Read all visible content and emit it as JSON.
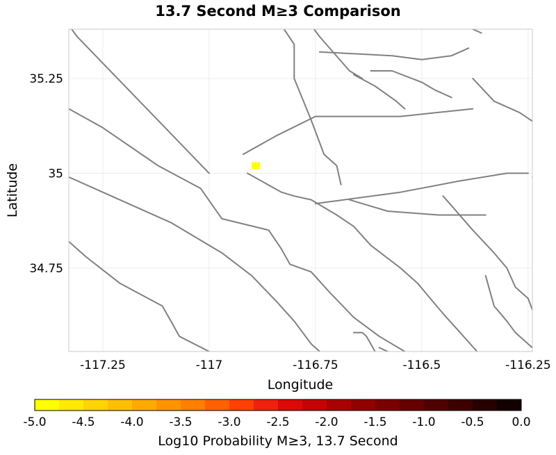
{
  "title": "13.7 Second M≥3 Comparison",
  "x_axis": {
    "label": "Longitude",
    "range": [
      -117.33,
      -116.24
    ],
    "ticks": [
      {
        "value": -117.25,
        "label": "-117.25"
      },
      {
        "value": -117.0,
        "label": "-117"
      },
      {
        "value": -116.75,
        "label": "-116.75"
      },
      {
        "value": -116.5,
        "label": "-116.5"
      },
      {
        "value": -116.25,
        "label": "-116.25"
      }
    ]
  },
  "y_axis": {
    "label": "Latitude",
    "range": [
      34.53,
      35.38
    ],
    "ticks": [
      {
        "value": 35.25,
        "label": "35.25"
      },
      {
        "value": 35.0,
        "label": "35"
      },
      {
        "value": 34.75,
        "label": "34.75"
      }
    ]
  },
  "grid": true,
  "colors": {
    "fault_line": "#808080",
    "frame": "#c8c8c8",
    "grid": "#ececec",
    "marker": "#ffff00"
  },
  "marker": {
    "lon": -116.89,
    "lat": 35.02,
    "color": "#ffff00"
  },
  "colorbar": {
    "label": "Log10 Probability M≥3, 13.7 Second",
    "ticks": [
      "-5.0",
      "-4.5",
      "-4.0",
      "-3.5",
      "-3.0",
      "-2.5",
      "-2.0",
      "-1.5",
      "-1.0",
      "-0.5",
      "0.0"
    ],
    "min": -5.0,
    "max": 0.0,
    "colors": [
      "#ffff00",
      "#ffea00",
      "#ffd400",
      "#ffbf00",
      "#ffaa00",
      "#ff9400",
      "#ff7f00",
      "#ff6000",
      "#ff4000",
      "#f02010",
      "#dd0808",
      "#c40404",
      "#aa0000",
      "#920000",
      "#7b0000",
      "#650000",
      "#500000",
      "#3c0000",
      "#280000",
      "#140000"
    ]
  },
  "faults": [
    [
      [
        -117.33,
        35.39
      ],
      [
        -117.31,
        35.36
      ],
      [
        -117.0,
        35.0
      ]
    ],
    [
      [
        -117.33,
        35.17
      ],
      [
        -117.25,
        35.12
      ],
      [
        -117.12,
        35.02
      ],
      [
        -117.02,
        34.96
      ],
      [
        -116.97,
        34.88
      ],
      [
        -116.86,
        34.85
      ],
      [
        -116.83,
        34.8
      ],
      [
        -116.81,
        34.76
      ],
      [
        -116.76,
        34.74
      ],
      [
        -116.72,
        34.69
      ],
      [
        -116.66,
        34.62
      ],
      [
        -116.6,
        34.57
      ],
      [
        -116.54,
        34.53
      ]
    ],
    [
      [
        -117.33,
        34.99
      ],
      [
        -117.23,
        34.94
      ],
      [
        -117.09,
        34.87
      ],
      [
        -116.97,
        34.79
      ],
      [
        -116.9,
        34.73
      ],
      [
        -116.84,
        34.66
      ],
      [
        -116.8,
        34.61
      ],
      [
        -116.76,
        34.55
      ],
      [
        -116.74,
        34.53
      ]
    ],
    [
      [
        -117.33,
        34.82
      ],
      [
        -117.29,
        34.78
      ],
      [
        -117.21,
        34.71
      ],
      [
        -117.11,
        34.65
      ],
      [
        -117.09,
        34.61
      ],
      [
        -117.07,
        34.57
      ],
      [
        -117.0,
        34.53
      ]
    ],
    [
      [
        -116.92,
        35.05
      ],
      [
        -116.84,
        35.1
      ],
      [
        -116.75,
        35.15
      ],
      [
        -116.55,
        35.15
      ],
      [
        -116.38,
        35.17
      ]
    ],
    [
      [
        -116.91,
        35.0
      ],
      [
        -116.83,
        34.95
      ],
      [
        -116.8,
        34.94
      ],
      [
        -116.76,
        34.93
      ],
      [
        -116.7,
        34.89
      ],
      [
        -116.66,
        34.86
      ],
      [
        -116.62,
        34.81
      ],
      [
        -116.55,
        34.75
      ],
      [
        -116.51,
        34.71
      ],
      [
        -116.48,
        34.67
      ],
      [
        -116.45,
        34.63
      ],
      [
        -116.41,
        34.58
      ],
      [
        -116.37,
        34.53
      ]
    ],
    [
      [
        -116.75,
        34.92
      ],
      [
        -116.55,
        34.95
      ],
      [
        -116.41,
        34.98
      ],
      [
        -116.3,
        35.0
      ],
      [
        -116.25,
        35.0
      ]
    ],
    [
      [
        -116.67,
        34.93
      ],
      [
        -116.58,
        34.9
      ],
      [
        -116.46,
        34.89
      ],
      [
        -116.39,
        34.89
      ],
      [
        -116.35,
        34.89
      ]
    ],
    [
      [
        -116.83,
        35.39
      ],
      [
        -116.8,
        35.34
      ],
      [
        -116.8,
        35.25
      ],
      [
        -116.76,
        35.14
      ],
      [
        -116.73,
        35.05
      ],
      [
        -116.7,
        35.02
      ],
      [
        -116.69,
        34.97
      ]
    ],
    [
      [
        -116.74,
        35.32
      ],
      [
        -116.57,
        35.31
      ],
      [
        -116.5,
        35.3
      ],
      [
        -116.43,
        35.31
      ],
      [
        -116.39,
        35.33
      ]
    ],
    [
      [
        -116.76,
        35.39
      ],
      [
        -116.74,
        35.36
      ],
      [
        -116.67,
        35.27
      ],
      [
        -116.64,
        35.25
      ]
    ],
    [
      [
        -116.62,
        35.27
      ],
      [
        -116.57,
        35.27
      ],
      [
        -116.5,
        35.24
      ],
      [
        -116.47,
        35.22
      ],
      [
        -116.43,
        35.2
      ]
    ],
    [
      [
        -116.66,
        35.26
      ],
      [
        -116.61,
        35.23
      ],
      [
        -116.56,
        35.19
      ],
      [
        -116.54,
        35.17
      ]
    ],
    [
      [
        -116.45,
        34.94
      ],
      [
        -116.38,
        34.85
      ],
      [
        -116.33,
        34.79
      ],
      [
        -116.3,
        34.75
      ],
      [
        -116.28,
        34.7
      ],
      [
        -116.25,
        34.67
      ],
      [
        -116.24,
        34.64
      ],
      [
        -116.22,
        34.6
      ]
    ],
    [
      [
        -116.35,
        34.73
      ],
      [
        -116.34,
        34.69
      ],
      [
        -116.33,
        34.65
      ],
      [
        -116.3,
        34.61
      ],
      [
        -116.28,
        34.58
      ],
      [
        -116.25,
        34.55
      ],
      [
        -116.23,
        34.53
      ]
    ],
    [
      [
        -116.38,
        35.25
      ],
      [
        -116.33,
        35.19
      ],
      [
        -116.27,
        35.16
      ],
      [
        -116.23,
        35.13
      ]
    ],
    [
      [
        -116.66,
        34.58
      ],
      [
        -116.64,
        34.58
      ],
      [
        -116.63,
        34.57
      ],
      [
        -116.62,
        34.55
      ],
      [
        -116.61,
        34.53
      ]
    ],
    [
      [
        -116.24,
        34.99
      ],
      [
        -116.22,
        34.97
      ]
    ],
    [
      [
        -116.6,
        34.54
      ],
      [
        -116.58,
        34.53
      ]
    ],
    [
      [
        -116.41,
        35.39
      ],
      [
        -116.38,
        35.38
      ],
      [
        -116.36,
        35.37
      ]
    ]
  ]
}
